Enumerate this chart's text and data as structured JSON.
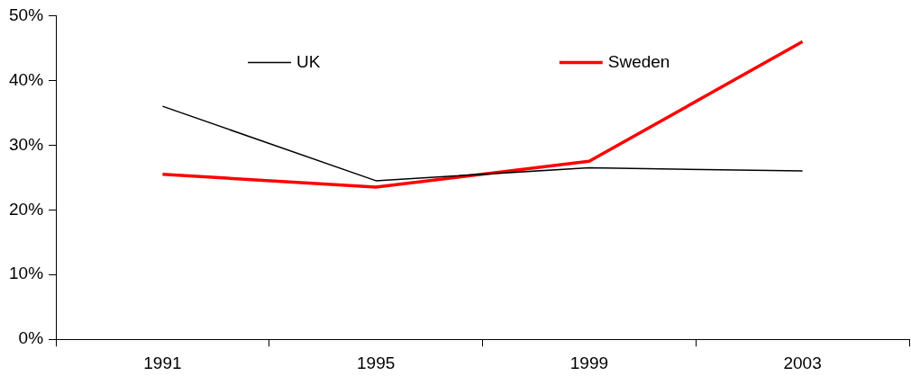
{
  "chart_data": {
    "type": "line",
    "categories": [
      "1991",
      "1995",
      "1999",
      "2003"
    ],
    "series": [
      {
        "name": "UK",
        "color": "#000000",
        "values": [
          36,
          24.5,
          26.5,
          26
        ]
      },
      {
        "name": "Sweden",
        "color": "#ff0000",
        "values": [
          25.5,
          23.5,
          27.5,
          46
        ]
      }
    ],
    "ylim": [
      0,
      50
    ],
    "yticks": [
      {
        "value": 0,
        "label": "0%"
      },
      {
        "value": 10,
        "label": "10%"
      },
      {
        "value": 20,
        "label": "20%"
      },
      {
        "value": 30,
        "label": "30%"
      },
      {
        "value": 40,
        "label": "40%"
      },
      {
        "value": 50,
        "label": "50%"
      }
    ],
    "grid": false,
    "legend": "top",
    "marker": "none"
  }
}
